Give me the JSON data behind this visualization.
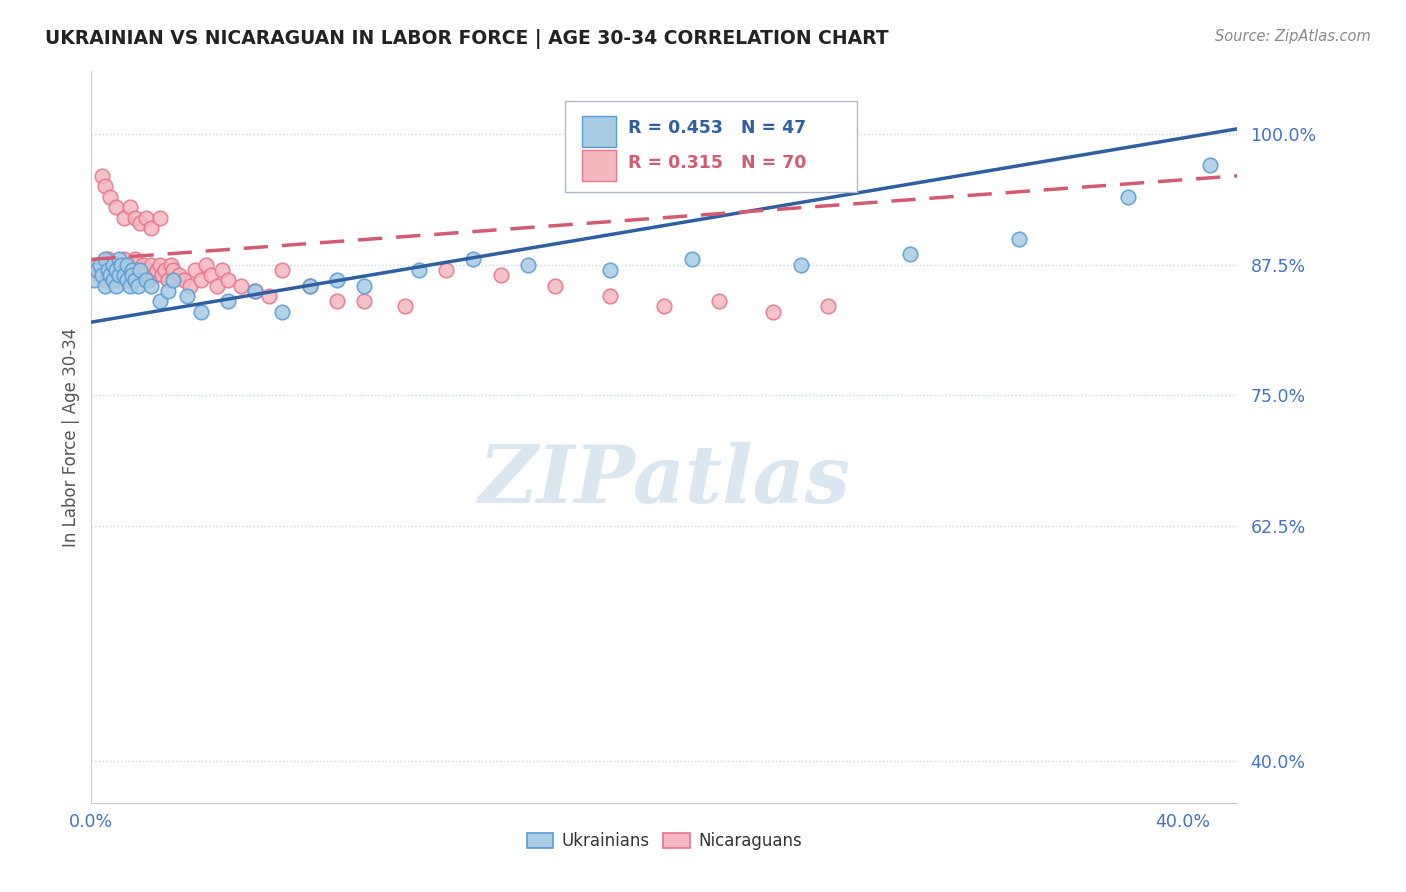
{
  "title": "UKRAINIAN VS NICARAGUAN IN LABOR FORCE | AGE 30-34 CORRELATION CHART",
  "source": "Source: ZipAtlas.com",
  "ylabel": "In Labor Force | Age 30-34",
  "yticks": [
    0.4,
    0.625,
    0.75,
    0.875,
    1.0
  ],
  "ytick_labels": [
    "40.0%",
    "62.5%",
    "75.0%",
    "87.5%",
    "100.0%"
  ],
  "xtick_labels": [
    "0.0%",
    "40.0%"
  ],
  "xlim": [
    0.0,
    0.42
  ],
  "ylim": [
    0.36,
    1.06
  ],
  "legend_R_blue": "R = 0.453",
  "legend_N_blue": "N = 47",
  "legend_R_pink": "R = 0.315",
  "legend_N_pink": "N = 70",
  "blue_color": "#a8cce4",
  "pink_color": "#f4b8c1",
  "blue_edge": "#5b9bd5",
  "pink_edge": "#e8748a",
  "blue_line_color": "#2e5fa3",
  "pink_line_color": "#d45a72",
  "watermark_text": "ZIPatlas",
  "watermark_color": "#dae6f0",
  "title_color": "#222222",
  "ylabel_color": "#555555",
  "tick_color": "#4472c4",
  "grid_color": "#c8d8ea",
  "legend_edge_color": "#b0b8c8",
  "blue_scatter_x": [
    0.001,
    0.002,
    0.003,
    0.004,
    0.005,
    0.005,
    0.006,
    0.007,
    0.008,
    0.008,
    0.009,
    0.009,
    0.01,
    0.01,
    0.011,
    0.012,
    0.013,
    0.013,
    0.014,
    0.015,
    0.015,
    0.016,
    0.017,
    0.018,
    0.02,
    0.022,
    0.025,
    0.028,
    0.03,
    0.035,
    0.04,
    0.05,
    0.06,
    0.07,
    0.08,
    0.09,
    0.1,
    0.12,
    0.14,
    0.16,
    0.19,
    0.22,
    0.26,
    0.3,
    0.34,
    0.38,
    0.41
  ],
  "blue_scatter_y": [
    0.86,
    0.87,
    0.875,
    0.865,
    0.855,
    0.88,
    0.87,
    0.865,
    0.86,
    0.875,
    0.87,
    0.855,
    0.865,
    0.88,
    0.875,
    0.865,
    0.86,
    0.875,
    0.855,
    0.87,
    0.865,
    0.86,
    0.855,
    0.87,
    0.86,
    0.855,
    0.84,
    0.85,
    0.86,
    0.845,
    0.83,
    0.84,
    0.85,
    0.83,
    0.855,
    0.86,
    0.855,
    0.87,
    0.88,
    0.875,
    0.87,
    0.88,
    0.875,
    0.885,
    0.9,
    0.94,
    0.97
  ],
  "pink_scatter_x": [
    0.001,
    0.002,
    0.003,
    0.004,
    0.004,
    0.005,
    0.006,
    0.007,
    0.008,
    0.009,
    0.01,
    0.01,
    0.011,
    0.012,
    0.012,
    0.013,
    0.014,
    0.015,
    0.015,
    0.016,
    0.017,
    0.018,
    0.019,
    0.02,
    0.021,
    0.022,
    0.023,
    0.024,
    0.025,
    0.026,
    0.027,
    0.028,
    0.029,
    0.03,
    0.032,
    0.034,
    0.036,
    0.038,
    0.04,
    0.042,
    0.044,
    0.046,
    0.048,
    0.05,
    0.055,
    0.06,
    0.065,
    0.07,
    0.08,
    0.09,
    0.1,
    0.115,
    0.13,
    0.15,
    0.17,
    0.19,
    0.21,
    0.23,
    0.25,
    0.27,
    0.005,
    0.007,
    0.009,
    0.012,
    0.014,
    0.016,
    0.018,
    0.02,
    0.022,
    0.025
  ],
  "pink_scatter_y": [
    0.87,
    0.875,
    0.865,
    0.87,
    0.96,
    0.86,
    0.88,
    0.87,
    0.875,
    0.865,
    0.86,
    0.875,
    0.87,
    0.865,
    0.88,
    0.875,
    0.86,
    0.87,
    0.875,
    0.88,
    0.87,
    0.865,
    0.875,
    0.87,
    0.86,
    0.875,
    0.865,
    0.87,
    0.875,
    0.865,
    0.87,
    0.86,
    0.875,
    0.87,
    0.865,
    0.86,
    0.855,
    0.87,
    0.86,
    0.875,
    0.865,
    0.855,
    0.87,
    0.86,
    0.855,
    0.85,
    0.845,
    0.87,
    0.855,
    0.84,
    0.84,
    0.835,
    0.87,
    0.865,
    0.855,
    0.845,
    0.835,
    0.84,
    0.83,
    0.835,
    0.95,
    0.94,
    0.93,
    0.92,
    0.93,
    0.92,
    0.915,
    0.92,
    0.91,
    0.92
  ],
  "bottom_legend_items": [
    {
      "label": "Ukrainians",
      "color": "#a8cce4",
      "edge": "#5b9bd5"
    },
    {
      "label": "Nicaraguans",
      "color": "#f4b8c1",
      "edge": "#e8748a"
    }
  ]
}
